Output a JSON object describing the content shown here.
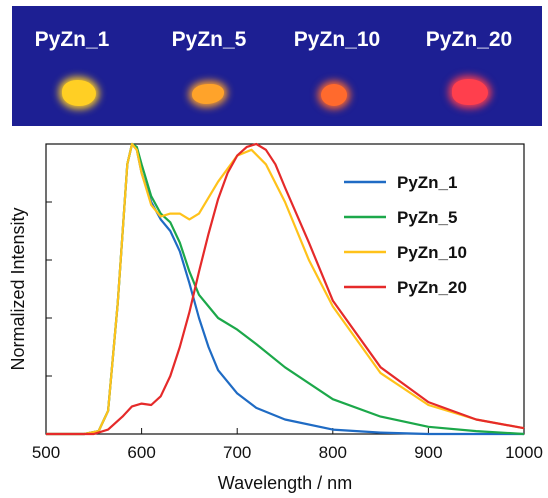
{
  "photo": {
    "labels": [
      "PyZn_1",
      "PyZn_5",
      "PyZn_10",
      "PyZn_20"
    ],
    "background": "#1d1f93",
    "spot_colors": [
      "#ffcf24",
      "#ffa32a",
      "#ff6a2d",
      "#ff3f4d"
    ]
  },
  "chart_data": {
    "type": "line",
    "title": "",
    "xlabel": "Wavelength / nm",
    "ylabel": "Normalized Intensity",
    "xlim": [
      500,
      1000
    ],
    "ylim": [
      0,
      1.0
    ],
    "xticks": [
      "500",
      "600",
      "700",
      "800",
      "900",
      "1000"
    ],
    "grid": false,
    "legend_position": "top-right",
    "series": [
      {
        "name": "PyZn_1",
        "color": "#1f6bc4",
        "x": [
          500,
          540,
          555,
          565,
          575,
          585,
          590,
          595,
          600,
          610,
          620,
          630,
          640,
          650,
          660,
          670,
          680,
          700,
          720,
          750,
          800,
          850,
          900,
          1000
        ],
        "y": [
          0,
          0,
          0.01,
          0.08,
          0.45,
          0.93,
          1.0,
          0.98,
          0.9,
          0.8,
          0.74,
          0.7,
          0.63,
          0.52,
          0.4,
          0.3,
          0.22,
          0.14,
          0.09,
          0.05,
          0.015,
          0.005,
          0,
          0
        ]
      },
      {
        "name": "PyZn_5",
        "color": "#1ca84a",
        "x": [
          500,
          540,
          555,
          565,
          575,
          585,
          590,
          595,
          600,
          610,
          620,
          630,
          640,
          650,
          660,
          680,
          700,
          720,
          750,
          800,
          850,
          900,
          950,
          1000
        ],
        "y": [
          0,
          0,
          0.01,
          0.08,
          0.45,
          0.93,
          1.0,
          0.99,
          0.93,
          0.82,
          0.76,
          0.73,
          0.66,
          0.56,
          0.48,
          0.4,
          0.36,
          0.31,
          0.23,
          0.12,
          0.06,
          0.025,
          0.01,
          0
        ]
      },
      {
        "name": "PyZn_10",
        "color": "#ffc21a",
        "x": [
          500,
          540,
          555,
          565,
          575,
          585,
          590,
          595,
          600,
          610,
          620,
          630,
          640,
          650,
          660,
          680,
          700,
          715,
          730,
          750,
          775,
          800,
          850,
          900,
          950,
          1000
        ],
        "y": [
          0,
          0,
          0.01,
          0.08,
          0.45,
          0.93,
          1.0,
          0.98,
          0.9,
          0.79,
          0.75,
          0.76,
          0.76,
          0.74,
          0.76,
          0.87,
          0.96,
          0.98,
          0.93,
          0.8,
          0.6,
          0.44,
          0.21,
          0.1,
          0.05,
          0.02
        ]
      },
      {
        "name": "PyZn_20",
        "color": "#e52a2a",
        "x": [
          500,
          550,
          565,
          580,
          590,
          600,
          610,
          620,
          630,
          640,
          650,
          660,
          670,
          680,
          690,
          700,
          710,
          720,
          730,
          740,
          750,
          775,
          800,
          850,
          900,
          950,
          1000
        ],
        "y": [
          0,
          0,
          0.015,
          0.06,
          0.095,
          0.105,
          0.1,
          0.13,
          0.2,
          0.3,
          0.42,
          0.56,
          0.69,
          0.81,
          0.9,
          0.96,
          0.99,
          1.0,
          0.98,
          0.93,
          0.85,
          0.66,
          0.46,
          0.23,
          0.11,
          0.05,
          0.02
        ]
      }
    ]
  }
}
